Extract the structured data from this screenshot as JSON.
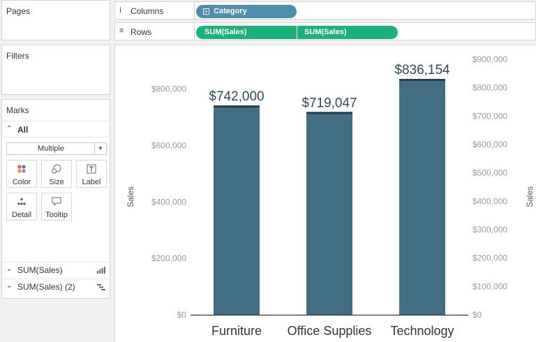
{
  "panels": {
    "pages": "Pages",
    "filters": "Filters",
    "marks": "Marks"
  },
  "marks": {
    "all_label": "All",
    "mark_type": "Multiple",
    "buttons": [
      {
        "label": "Color",
        "icon": "color-dots-icon"
      },
      {
        "label": "Size",
        "icon": "size-icon"
      },
      {
        "label": "Label",
        "icon": "label-icon"
      },
      {
        "label": "Detail",
        "icon": "detail-icon"
      },
      {
        "label": "Tooltip",
        "icon": "tooltip-icon"
      }
    ],
    "cards": [
      {
        "label": "SUM(Sales)",
        "icon": "bar-chart-icon"
      },
      {
        "label": "SUM(Sales) (2)",
        "icon": "gantt-icon"
      }
    ]
  },
  "shelves": {
    "columns": {
      "label": "Columns",
      "pills": [
        "Category"
      ]
    },
    "rows": {
      "label": "Rows",
      "pills": [
        "SUM(Sales)",
        "SUM(Sales)"
      ]
    }
  },
  "colors": {
    "bar": "#426e84",
    "bar_top": "#263f4d",
    "columns_pill": "#4e8fb0",
    "rows_pill": "#1ab27a",
    "axis_text": "#9a9a9a",
    "label_text": "#2d4a5c"
  },
  "chart_data": {
    "type": "bar",
    "categories": [
      "Furniture",
      "Office Supplies",
      "Technology"
    ],
    "values": [
      742000,
      719047,
      836154
    ],
    "data_labels": [
      "$742,000",
      "$719,047",
      "$836,154"
    ],
    "left_axis": {
      "label": "Sales",
      "ylim": [
        0,
        836154
      ],
      "ticks": [
        0,
        200000,
        400000,
        600000,
        800000
      ],
      "tick_labels": [
        "$0",
        "$200,000",
        "$400,000",
        "$600,000",
        "$800,000"
      ]
    },
    "right_axis": {
      "label": "Sales",
      "ylim": [
        0,
        900000
      ],
      "ticks": [
        0,
        100000,
        200000,
        300000,
        400000,
        500000,
        600000,
        700000,
        800000,
        900000
      ],
      "tick_labels": [
        "$0",
        "$100,000",
        "$200,000",
        "$300,000",
        "$400,000",
        "$500,000",
        "$600,000",
        "$700,000",
        "$800,000",
        "$900,000"
      ]
    },
    "grid": false,
    "legend": "none"
  }
}
